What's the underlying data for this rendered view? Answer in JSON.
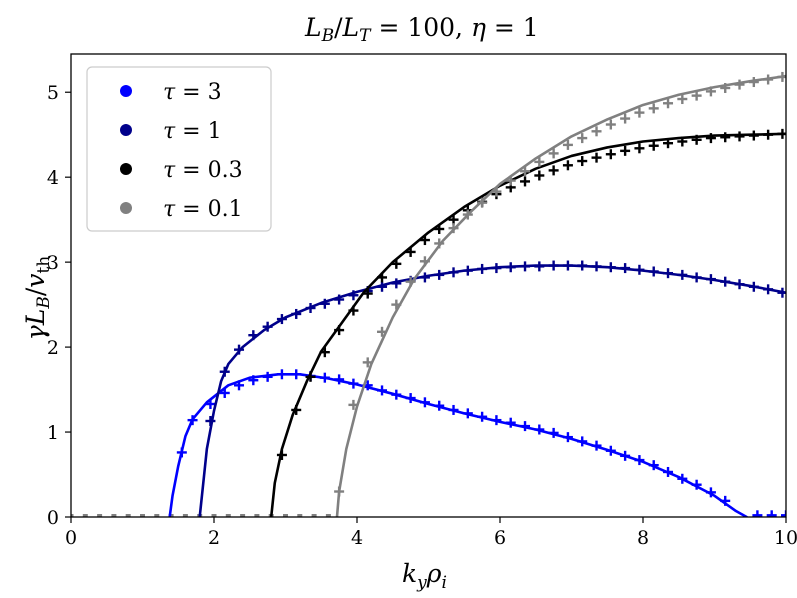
{
  "chart_data": {
    "type": "line",
    "title": "L_B/L_T = 100, η = 1",
    "xlabel": "k_y ρ_i",
    "ylabel": "γ L_B / v_th",
    "xlim": [
      0,
      10
    ],
    "ylim": [
      0,
      5.45
    ],
    "xticks": [
      0,
      2,
      4,
      6,
      8,
      10
    ],
    "yticks": [
      0,
      1,
      2,
      3,
      4,
      5
    ],
    "grid": false,
    "legend_position": "top-left",
    "series": [
      {
        "name": "τ = 3",
        "color": "#0000ff",
        "line": [
          [
            1.38,
            0
          ],
          [
            1.42,
            0.25
          ],
          [
            1.5,
            0.6
          ],
          [
            1.6,
            0.95
          ],
          [
            1.7,
            1.15
          ],
          [
            1.9,
            1.35
          ],
          [
            2.2,
            1.55
          ],
          [
            2.5,
            1.64
          ],
          [
            2.9,
            1.68
          ],
          [
            3.2,
            1.68
          ],
          [
            3.6,
            1.63
          ],
          [
            4.0,
            1.56
          ],
          [
            4.5,
            1.45
          ],
          [
            5.0,
            1.33
          ],
          [
            5.5,
            1.22
          ],
          [
            6.0,
            1.12
          ],
          [
            6.5,
            1.03
          ],
          [
            7.0,
            0.92
          ],
          [
            7.5,
            0.79
          ],
          [
            8.0,
            0.65
          ],
          [
            8.5,
            0.47
          ],
          [
            9.0,
            0.25
          ],
          [
            9.3,
            0.07
          ],
          [
            9.45,
            0
          ]
        ],
        "markers": [
          [
            1.55,
            0.76
          ],
          [
            1.7,
            1.14
          ],
          [
            1.95,
            1.33
          ],
          [
            2.15,
            1.46
          ],
          [
            2.35,
            1.55
          ],
          [
            2.55,
            1.61
          ],
          [
            2.75,
            1.65
          ],
          [
            2.95,
            1.68
          ],
          [
            3.15,
            1.68
          ],
          [
            3.35,
            1.66
          ],
          [
            3.55,
            1.64
          ],
          [
            3.75,
            1.62
          ],
          [
            3.95,
            1.57
          ],
          [
            4.15,
            1.55
          ],
          [
            4.35,
            1.49
          ],
          [
            4.55,
            1.44
          ],
          [
            4.75,
            1.4
          ],
          [
            4.95,
            1.35
          ],
          [
            5.15,
            1.31
          ],
          [
            5.35,
            1.26
          ],
          [
            5.55,
            1.22
          ],
          [
            5.75,
            1.18
          ],
          [
            5.95,
            1.14
          ],
          [
            6.15,
            1.11
          ],
          [
            6.35,
            1.07
          ],
          [
            6.55,
            1.03
          ],
          [
            6.75,
            0.99
          ],
          [
            6.95,
            0.94
          ],
          [
            7.15,
            0.89
          ],
          [
            7.35,
            0.84
          ],
          [
            7.55,
            0.78
          ],
          [
            7.75,
            0.72
          ],
          [
            7.95,
            0.67
          ],
          [
            8.15,
            0.61
          ],
          [
            8.35,
            0.53
          ],
          [
            8.55,
            0.45
          ],
          [
            8.75,
            0.38
          ],
          [
            8.95,
            0.29
          ],
          [
            9.15,
            0.19
          ],
          [
            9.6,
            0.02
          ],
          [
            9.8,
            0.02
          ],
          [
            10.0,
            0.02
          ]
        ]
      },
      {
        "name": "τ = 1",
        "color": "#00008b",
        "line": [
          [
            1.8,
            0
          ],
          [
            1.85,
            0.4
          ],
          [
            1.9,
            0.8
          ],
          [
            2.0,
            1.25
          ],
          [
            2.1,
            1.6
          ],
          [
            2.2,
            1.8
          ],
          [
            2.4,
            2.0
          ],
          [
            2.7,
            2.2
          ],
          [
            3.0,
            2.35
          ],
          [
            3.5,
            2.52
          ],
          [
            4.0,
            2.65
          ],
          [
            4.5,
            2.76
          ],
          [
            5.0,
            2.84
          ],
          [
            5.5,
            2.9
          ],
          [
            6.0,
            2.94
          ],
          [
            6.5,
            2.96
          ],
          [
            7.0,
            2.96
          ],
          [
            7.5,
            2.94
          ],
          [
            8.0,
            2.9
          ],
          [
            8.5,
            2.85
          ],
          [
            9.0,
            2.79
          ],
          [
            9.5,
            2.72
          ],
          [
            10.0,
            2.64
          ]
        ],
        "markers": [
          [
            1.95,
            1.13
          ],
          [
            2.15,
            1.71
          ],
          [
            2.35,
            1.97
          ],
          [
            2.55,
            2.14
          ],
          [
            2.75,
            2.24
          ],
          [
            2.95,
            2.33
          ],
          [
            3.15,
            2.39
          ],
          [
            3.35,
            2.46
          ],
          [
            3.55,
            2.51
          ],
          [
            3.75,
            2.56
          ],
          [
            3.95,
            2.61
          ],
          [
            4.15,
            2.66
          ],
          [
            4.35,
            2.71
          ],
          [
            4.55,
            2.75
          ],
          [
            4.75,
            2.78
          ],
          [
            4.95,
            2.82
          ],
          [
            5.15,
            2.85
          ],
          [
            5.35,
            2.88
          ],
          [
            5.55,
            2.9
          ],
          [
            5.75,
            2.92
          ],
          [
            5.95,
            2.93
          ],
          [
            6.15,
            2.94
          ],
          [
            6.35,
            2.95
          ],
          [
            6.55,
            2.95
          ],
          [
            6.75,
            2.96
          ],
          [
            6.95,
            2.96
          ],
          [
            7.15,
            2.96
          ],
          [
            7.35,
            2.95
          ],
          [
            7.55,
            2.94
          ],
          [
            7.75,
            2.93
          ],
          [
            7.95,
            2.91
          ],
          [
            8.15,
            2.89
          ],
          [
            8.35,
            2.87
          ],
          [
            8.55,
            2.85
          ],
          [
            8.75,
            2.82
          ],
          [
            8.95,
            2.8
          ],
          [
            9.15,
            2.77
          ],
          [
            9.35,
            2.74
          ],
          [
            9.55,
            2.71
          ],
          [
            9.75,
            2.68
          ],
          [
            9.95,
            2.64
          ]
        ]
      },
      {
        "name": "τ = 0.3",
        "color": "#000000",
        "line": [
          [
            2.8,
            0
          ],
          [
            2.85,
            0.4
          ],
          [
            2.95,
            0.8
          ],
          [
            3.1,
            1.2
          ],
          [
            3.3,
            1.6
          ],
          [
            3.5,
            1.95
          ],
          [
            3.8,
            2.3
          ],
          [
            4.1,
            2.65
          ],
          [
            4.5,
            3.0
          ],
          [
            5.0,
            3.35
          ],
          [
            5.5,
            3.65
          ],
          [
            6.0,
            3.9
          ],
          [
            6.5,
            4.1
          ],
          [
            7.0,
            4.25
          ],
          [
            7.5,
            4.35
          ],
          [
            8.0,
            4.42
          ],
          [
            8.5,
            4.46
          ],
          [
            9.0,
            4.49
          ],
          [
            9.5,
            4.5
          ],
          [
            10.0,
            4.51
          ]
        ],
        "markers": [
          [
            2.95,
            0.73
          ],
          [
            3.15,
            1.26
          ],
          [
            3.35,
            1.65
          ],
          [
            3.55,
            1.94
          ],
          [
            3.75,
            2.2
          ],
          [
            3.95,
            2.43
          ],
          [
            4.15,
            2.63
          ],
          [
            4.35,
            2.82
          ],
          [
            4.55,
            2.98
          ],
          [
            4.75,
            3.12
          ],
          [
            4.95,
            3.26
          ],
          [
            5.15,
            3.39
          ],
          [
            5.35,
            3.5
          ],
          [
            5.55,
            3.61
          ],
          [
            5.75,
            3.71
          ],
          [
            5.95,
            3.8
          ],
          [
            6.15,
            3.88
          ],
          [
            6.35,
            3.95
          ],
          [
            6.55,
            4.02
          ],
          [
            6.75,
            4.08
          ],
          [
            6.95,
            4.14
          ],
          [
            7.15,
            4.19
          ],
          [
            7.35,
            4.23
          ],
          [
            7.55,
            4.27
          ],
          [
            7.75,
            4.31
          ],
          [
            7.95,
            4.34
          ],
          [
            8.15,
            4.37
          ],
          [
            8.35,
            4.4
          ],
          [
            8.55,
            4.42
          ],
          [
            8.75,
            4.44
          ],
          [
            8.95,
            4.46
          ],
          [
            9.15,
            4.47
          ],
          [
            9.35,
            4.48
          ],
          [
            9.55,
            4.49
          ],
          [
            9.75,
            4.5
          ],
          [
            9.95,
            4.51
          ]
        ]
      },
      {
        "name": "τ = 0.1",
        "color": "#808080",
        "line": [
          [
            3.72,
            0
          ],
          [
            3.75,
            0.3
          ],
          [
            3.85,
            0.8
          ],
          [
            4.0,
            1.3
          ],
          [
            4.2,
            1.8
          ],
          [
            4.5,
            2.35
          ],
          [
            4.8,
            2.8
          ],
          [
            5.2,
            3.25
          ],
          [
            5.6,
            3.6
          ],
          [
            6.0,
            3.92
          ],
          [
            6.5,
            4.22
          ],
          [
            7.0,
            4.48
          ],
          [
            7.5,
            4.68
          ],
          [
            8.0,
            4.85
          ],
          [
            8.5,
            4.97
          ],
          [
            9.0,
            5.06
          ],
          [
            9.5,
            5.13
          ],
          [
            10.0,
            5.19
          ]
        ],
        "markers": [
          [
            3.75,
            0.3
          ],
          [
            3.95,
            1.32
          ],
          [
            4.15,
            1.82
          ],
          [
            4.35,
            2.18
          ],
          [
            4.55,
            2.5
          ],
          [
            4.75,
            2.77
          ],
          [
            4.95,
            3.01
          ],
          [
            5.15,
            3.22
          ],
          [
            5.35,
            3.4
          ],
          [
            5.55,
            3.56
          ],
          [
            5.75,
            3.7
          ],
          [
            5.95,
            3.83
          ],
          [
            6.15,
            3.96
          ],
          [
            6.35,
            4.07
          ],
          [
            6.55,
            4.18
          ],
          [
            6.75,
            4.28
          ],
          [
            6.95,
            4.38
          ],
          [
            7.15,
            4.46
          ],
          [
            7.35,
            4.54
          ],
          [
            7.55,
            4.62
          ],
          [
            7.75,
            4.69
          ],
          [
            7.95,
            4.76
          ],
          [
            8.15,
            4.81
          ],
          [
            8.35,
            4.87
          ],
          [
            8.55,
            4.92
          ],
          [
            8.75,
            4.96
          ],
          [
            8.95,
            5.01
          ],
          [
            9.15,
            5.05
          ],
          [
            9.35,
            5.09
          ],
          [
            9.55,
            5.12
          ],
          [
            9.75,
            5.15
          ],
          [
            9.95,
            5.18
          ]
        ]
      }
    ],
    "baseline_markers": {
      "color": "#808080",
      "x": [
        0,
        0.2,
        0.4,
        0.6,
        0.8,
        1.0,
        1.2,
        1.4,
        1.6,
        1.8,
        2.0,
        2.2,
        2.4,
        2.6,
        2.8,
        3.0,
        3.2,
        3.4,
        3.6
      ],
      "y": 0.02
    }
  }
}
